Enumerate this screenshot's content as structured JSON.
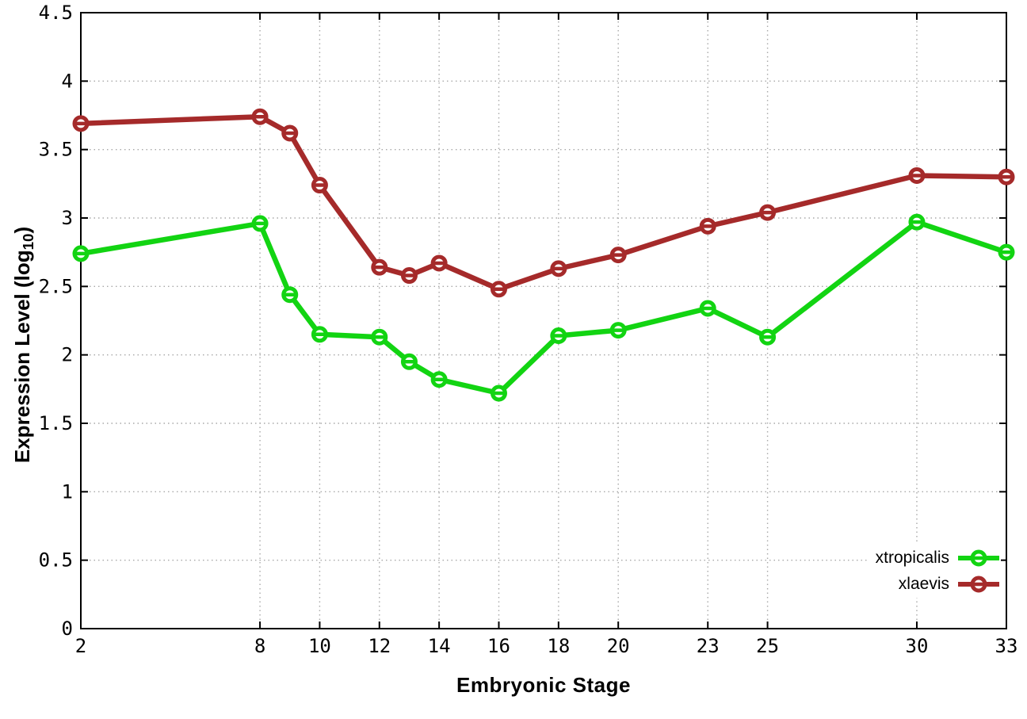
{
  "chart_data": {
    "type": "line",
    "title": "",
    "xlabel": "Embryonic Stage",
    "ylabel_prefix": "Expression Level (log",
    "ylabel_sub": "10",
    "ylabel_suffix": ")",
    "xlim": [
      2,
      33
    ],
    "ylim": [
      0,
      4.5
    ],
    "x_ticks": [
      2,
      8,
      10,
      12,
      14,
      16,
      18,
      20,
      23,
      25,
      30,
      33
    ],
    "y_ticks": [
      0,
      0.5,
      1,
      1.5,
      2,
      2.5,
      3,
      3.5,
      4,
      4.5
    ],
    "grid": true,
    "legend_position": "bottom-right",
    "x": [
      2,
      8,
      9,
      10,
      12,
      13,
      14,
      16,
      18,
      20,
      23,
      25,
      30,
      33
    ],
    "series": [
      {
        "name": "xtropicalis",
        "color": "#12d412",
        "marker": "open-circle-with-dash",
        "values": [
          2.74,
          2.96,
          2.44,
          2.15,
          2.13,
          1.95,
          1.82,
          1.72,
          2.14,
          2.18,
          2.34,
          2.13,
          2.97,
          2.75
        ]
      },
      {
        "name": "xlaevis",
        "color": "#a52a2a",
        "marker": "open-circle-with-dash",
        "values": [
          3.69,
          3.74,
          3.62,
          3.24,
          2.64,
          2.58,
          2.67,
          2.48,
          2.63,
          2.73,
          2.94,
          3.04,
          3.31,
          3.3
        ]
      }
    ],
    "colors": {
      "background": "#ffffff",
      "axis": "#000000",
      "grid": "#a8a8a8",
      "tick_text": "#000000"
    }
  }
}
